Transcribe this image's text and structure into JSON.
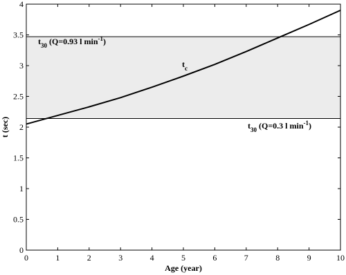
{
  "chart_data": {
    "type": "line",
    "xlabel": "Age (year)",
    "ylabel": "t (sec)",
    "x": [
      0,
      1,
      2,
      3,
      4,
      5,
      6,
      7,
      8,
      9,
      10
    ],
    "series": [
      {
        "color": "#000000",
        "values": [
          2.05,
          2.19,
          2.33,
          2.48,
          2.65,
          2.83,
          3.02,
          3.23,
          3.45,
          3.67,
          3.9
        ]
      }
    ],
    "xlim": [
      0,
      10
    ],
    "xticks": [
      0,
      1,
      2,
      3,
      4,
      5,
      6,
      7,
      8,
      9,
      10
    ],
    "ylim": [
      0,
      4
    ],
    "yticks": [
      0,
      0.5,
      1,
      1.5,
      2,
      2.5,
      3,
      3.5,
      4
    ],
    "band_color": "#ececec",
    "hlines": [
      {
        "value": 3.47,
        "label": {
          "t": "t",
          "sub": "30",
          "text": " (Q=0.93 l min",
          "sup": "-1",
          "close": ")"
        }
      },
      {
        "value": 2.14,
        "label": {
          "t": "t",
          "sub": "30",
          "text": " (Q=0.3 l min",
          "sup": "-1",
          "close": ")"
        }
      }
    ],
    "curve_label": {
      "t": "t",
      "sub": "c"
    }
  }
}
